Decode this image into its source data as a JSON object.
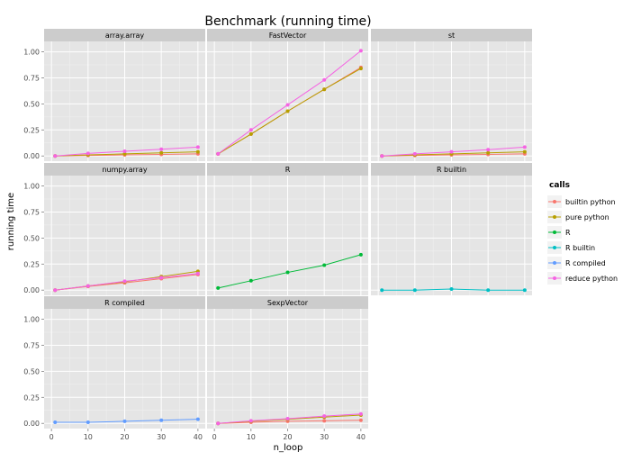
{
  "chart_data": {
    "type": "line",
    "title": "Benchmark (running time)",
    "xlabel": "n_loop",
    "ylabel": "running time",
    "x": [
      1,
      10,
      20,
      30,
      40
    ],
    "x_ticks": [
      "0",
      "10",
      "20",
      "30",
      "40"
    ],
    "ylim": [
      -0.05,
      1.1
    ],
    "y_ticks": [
      "0.00",
      "0.25",
      "0.50",
      "0.75",
      "1.00"
    ],
    "grid": true,
    "legend_position": "right",
    "legend": {
      "title": "calls",
      "entries": [
        {
          "name": "builtin python",
          "color": "#F8766D"
        },
        {
          "name": "pure python",
          "color": "#B79F00"
        },
        {
          "name": "R",
          "color": "#00BA38"
        },
        {
          "name": "R builtin",
          "color": "#00BFC4"
        },
        {
          "name": "R compiled",
          "color": "#619CFF"
        },
        {
          "name": "reduce python",
          "color": "#F564E3"
        }
      ]
    },
    "panels": [
      {
        "name": "array.array",
        "series": [
          {
            "name": "builtin python",
            "values": [
              0.0,
              0.005,
              0.01,
              0.015,
              0.02
            ]
          },
          {
            "name": "pure python",
            "values": [
              0.0,
              0.01,
              0.02,
              0.03,
              0.04
            ]
          },
          {
            "name": "reduce python",
            "values": [
              0.0,
              0.025,
              0.045,
              0.065,
              0.085
            ]
          }
        ]
      },
      {
        "name": "FastVector",
        "series": [
          {
            "name": "builtin python",
            "values": [
              0.02,
              0.21,
              0.43,
              0.64,
              0.85
            ]
          },
          {
            "name": "pure python",
            "values": [
              0.02,
              0.21,
              0.43,
              0.64,
              0.84
            ]
          },
          {
            "name": "reduce python",
            "values": [
              0.02,
              0.25,
              0.49,
              0.73,
              1.01
            ]
          }
        ]
      },
      {
        "name": "st",
        "series": [
          {
            "name": "builtin python",
            "values": [
              0.0,
              0.005,
              0.01,
              0.015,
              0.02
            ]
          },
          {
            "name": "pure python",
            "values": [
              0.0,
              0.01,
              0.02,
              0.03,
              0.04
            ]
          },
          {
            "name": "reduce python",
            "values": [
              0.0,
              0.02,
              0.04,
              0.06,
              0.085
            ]
          }
        ]
      },
      {
        "name": "numpy.array",
        "series": [
          {
            "name": "builtin python",
            "values": [
              0.0,
              0.035,
              0.07,
              0.11,
              0.15
            ]
          },
          {
            "name": "pure python",
            "values": [
              0.0,
              0.04,
              0.08,
              0.13,
              0.18
            ]
          },
          {
            "name": "reduce python",
            "values": [
              0.0,
              0.04,
              0.085,
              0.12,
              0.16
            ]
          }
        ]
      },
      {
        "name": "R",
        "series": [
          {
            "name": "R",
            "values": [
              0.02,
              0.09,
              0.17,
              0.24,
              0.34
            ]
          }
        ]
      },
      {
        "name": "R builtin",
        "series": [
          {
            "name": "R builtin",
            "values": [
              0.0,
              0.0,
              0.01,
              0.0,
              0.0
            ]
          }
        ]
      },
      {
        "name": "R compiled",
        "series": [
          {
            "name": "R compiled",
            "values": [
              0.01,
              0.01,
              0.02,
              0.03,
              0.04
            ]
          }
        ]
      },
      {
        "name": "SexpVector",
        "series": [
          {
            "name": "builtin python",
            "values": [
              0.0,
              0.01,
              0.02,
              0.025,
              0.03
            ]
          },
          {
            "name": "pure python",
            "values": [
              0.0,
              0.02,
              0.04,
              0.06,
              0.08
            ]
          },
          {
            "name": "reduce python",
            "values": [
              0.0,
              0.025,
              0.045,
              0.07,
              0.09
            ]
          }
        ]
      }
    ]
  }
}
